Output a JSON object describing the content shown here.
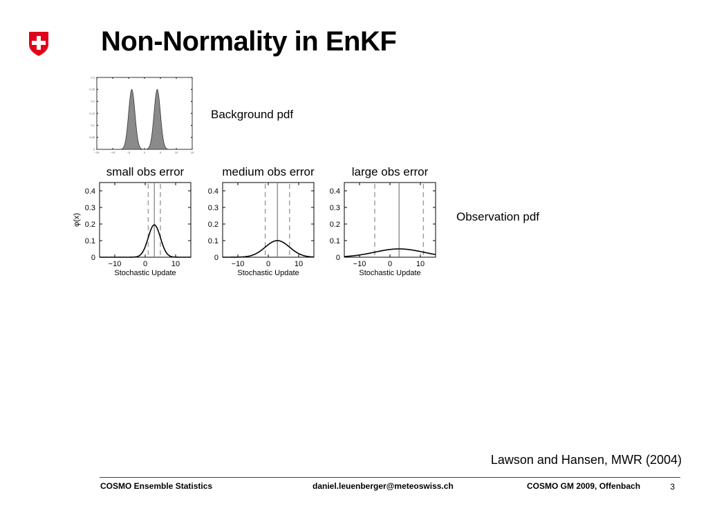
{
  "title": "Non-Normality in EnKF",
  "logo": {
    "icon": "swiss-cross-shield-icon",
    "color": "#e2001a"
  },
  "labels": {
    "background_pdf": "Background pdf",
    "observation_pdf": "Observation pdf"
  },
  "citation": "Lawson and Hansen, MWR (2004)",
  "footer": {
    "left": "COSMO Ensemble Statistics",
    "center": "daniel.leuenberger@meteoswiss.ch",
    "right": "COSMO GM 2009, Offenbach",
    "page": "3"
  },
  "chart_data": [
    {
      "type": "area",
      "title": "",
      "xlabel": "",
      "ylabel": "",
      "xlim": [
        -15,
        15
      ],
      "ylim": [
        0,
        0.3
      ],
      "xticks": [
        -15,
        -10,
        -5,
        0,
        5,
        10,
        15
      ],
      "yticks": [
        0,
        0.05,
        0.1,
        0.15,
        0.2,
        0.25,
        0.3
      ],
      "series": [
        {
          "shape": "bimodal",
          "modes": [
            -4,
            4
          ],
          "sd": 1.0,
          "peak": 0.25
        }
      ]
    },
    {
      "type": "line",
      "title": "small obs error",
      "xlabel": "Stochastic Update",
      "ylabel": "φ(x)",
      "xlim": [
        -15,
        15
      ],
      "ylim": [
        0,
        0.45
      ],
      "xticks": [
        -10,
        0,
        10
      ],
      "yticks": [
        0,
        0.1,
        0.2,
        0.3,
        0.4
      ],
      "series": [
        {
          "mean": 3,
          "sd": 2,
          "peak": 0.195
        }
      ],
      "vlines": {
        "dashed": [
          1,
          5
        ],
        "solid": 3
      }
    },
    {
      "type": "line",
      "title": "medium obs error",
      "xlabel": "Stochastic Update",
      "ylabel": "",
      "xlim": [
        -15,
        15
      ],
      "ylim": [
        0,
        0.45
      ],
      "xticks": [
        -10,
        0,
        10
      ],
      "yticks": [
        0,
        0.1,
        0.2,
        0.3,
        0.4
      ],
      "series": [
        {
          "mean": 3,
          "sd": 4,
          "peak": 0.1
        }
      ],
      "vlines": {
        "dashed": [
          -1,
          7
        ],
        "solid": 3
      }
    },
    {
      "type": "line",
      "title": "large obs error",
      "xlabel": "Stochastic Update",
      "ylabel": "",
      "xlim": [
        -15,
        15
      ],
      "ylim": [
        0,
        0.45
      ],
      "xticks": [
        -10,
        0,
        10
      ],
      "yticks": [
        0,
        0.1,
        0.2,
        0.3,
        0.4
      ],
      "series": [
        {
          "mean": 3,
          "sd": 8,
          "peak": 0.05
        }
      ],
      "vlines": {
        "dashed": [
          -5,
          11
        ],
        "solid": 3
      }
    }
  ]
}
